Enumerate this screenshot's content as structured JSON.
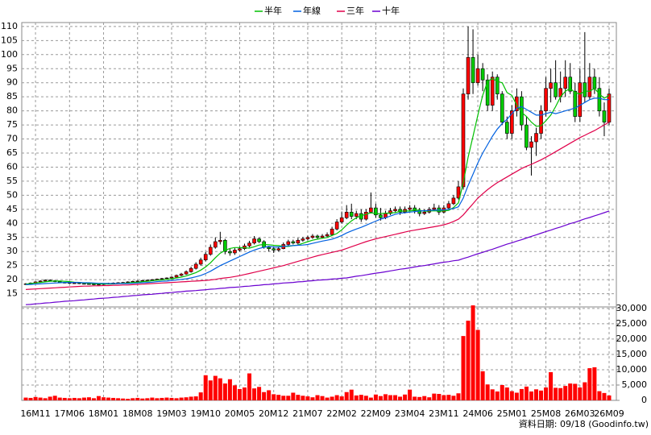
{
  "chart_data": {
    "type": "candlestick",
    "source": "資料日期: 09/18 (Goodinfo.tw)",
    "categories": [
      null,
      null,
      "16M11",
      null,
      null,
      null,
      null,
      null,
      null,
      "17M06",
      null,
      null,
      null,
      null,
      null,
      null,
      "18M01",
      null,
      null,
      null,
      null,
      null,
      null,
      "18M08",
      null,
      null,
      null,
      null,
      null,
      null,
      "19M03",
      null,
      null,
      null,
      null,
      null,
      null,
      "19M10",
      null,
      null,
      null,
      null,
      null,
      null,
      "20M05",
      null,
      null,
      null,
      null,
      null,
      null,
      "20M12",
      null,
      null,
      null,
      null,
      null,
      null,
      "21M07",
      null,
      null,
      null,
      null,
      null,
      null,
      "22M02",
      null,
      null,
      null,
      null,
      null,
      null,
      "22M09",
      null,
      null,
      null,
      null,
      null,
      null,
      "23M04",
      null,
      null,
      null,
      null,
      null,
      null,
      "23M11",
      null,
      null,
      null,
      null,
      null,
      null,
      "24M06",
      null,
      null,
      null,
      null,
      null,
      null,
      "25M01",
      null,
      null,
      null,
      null,
      null,
      null,
      "25M08",
      null,
      null,
      null,
      null,
      null,
      null,
      "26M03",
      null,
      null,
      null,
      null,
      null,
      "26M09"
    ],
    "ylim": [
      10.3,
      111.4
    ],
    "yticks": [
      15,
      20,
      25,
      30,
      35,
      40,
      45,
      50,
      55,
      60,
      65,
      70,
      75,
      80,
      85,
      90,
      95,
      100,
      105,
      110
    ],
    "grid": true,
    "up_color": "#ff0000",
    "down_color": "#00cc00",
    "open": [
      18.3,
      18.5,
      18.8,
      19.2,
      19.5,
      19.8,
      19.6,
      19.3,
      19.0,
      18.9,
      18.7,
      18.8,
      18.6,
      18.5,
      18.4,
      18.2,
      18.3,
      18.5,
      18.7,
      18.8,
      18.9,
      19.0,
      19.2,
      19.4,
      19.5,
      19.7,
      19.8,
      20.0,
      20.2,
      20.4,
      20.6,
      20.9,
      21.5,
      22.0,
      22.8,
      24.0,
      25.5,
      27.0,
      29.0,
      31.5,
      33.5,
      34.0,
      30.0,
      29.5,
      30.5,
      31.0,
      32.0,
      33.0,
      34.5,
      33.5,
      31.5,
      31.0,
      30.5,
      31.0,
      32.5,
      33.5,
      33.0,
      34.0,
      34.5,
      35.0,
      35.5,
      35.0,
      35.5,
      36.0,
      38.0,
      40.5,
      42.0,
      44.0,
      42.5,
      43.5,
      41.5,
      44.0,
      45.5,
      43.0,
      42.0,
      43.5,
      44.5,
      45.0,
      44.0,
      45.0,
      45.5,
      44.5,
      43.5,
      44.0,
      45.0,
      45.5,
      44.0,
      45.5,
      47.0,
      49.0,
      53.0,
      86.0,
      99.0,
      90.0,
      95.0,
      91.0,
      82.0,
      92.0,
      86.0,
      76.0,
      72.0,
      80.0,
      85.0,
      75.0,
      67.0,
      69.0,
      72.0,
      80.0,
      88.0,
      90.0,
      85.0,
      88.0,
      92.0,
      87.0,
      78.0,
      90.0,
      85.0,
      92.0,
      88.0,
      80.0,
      76.0
    ],
    "high": [
      18.8,
      19.0,
      19.4,
      19.8,
      20.1,
      20.1,
      19.9,
      19.5,
      19.2,
      19.1,
      19.0,
      19.0,
      18.8,
      18.7,
      18.6,
      18.5,
      18.7,
      18.9,
      19.0,
      19.1,
      19.2,
      19.4,
      19.6,
      19.7,
      19.9,
      20.0,
      20.2,
      20.4,
      20.6,
      20.8,
      21.1,
      21.8,
      22.4,
      23.3,
      24.6,
      26.2,
      27.8,
      29.8,
      32.5,
      35.0,
      37.0,
      34.5,
      31.0,
      31.2,
      31.8,
      32.8,
      33.8,
      35.5,
      35.0,
      34.0,
      32.0,
      31.5,
      31.8,
      33.2,
      34.2,
      34.2,
      34.8,
      35.2,
      35.6,
      36.2,
      36.0,
      36.2,
      36.8,
      38.8,
      41.5,
      44.0,
      46.5,
      47.0,
      44.5,
      45.0,
      45.0,
      51.0,
      47.0,
      45.5,
      44.5,
      45.5,
      46.0,
      46.0,
      46.0,
      46.5,
      46.5,
      45.5,
      45.0,
      45.8,
      47.0,
      46.5,
      46.5,
      48.0,
      50.0,
      55.0,
      88.0,
      110.0,
      109.0,
      100.0,
      97.0,
      93.0,
      94.0,
      93.0,
      87.0,
      78.0,
      82.0,
      88.0,
      87.0,
      78.0,
      71.0,
      74.0,
      82.0,
      92.0,
      95.0,
      98.0,
      94.0,
      98.0,
      97.0,
      90.0,
      95.0,
      108.0,
      97.0,
      95.0,
      92.0,
      83.0,
      88.0
    ],
    "low": [
      18.1,
      18.3,
      18.6,
      19.0,
      19.3,
      19.4,
      19.1,
      18.8,
      18.7,
      18.5,
      18.5,
      18.4,
      18.3,
      18.2,
      18.0,
      18.0,
      18.1,
      18.3,
      18.5,
      18.6,
      18.7,
      18.8,
      19.0,
      19.2,
      19.3,
      19.5,
      19.6,
      19.8,
      20.0,
      20.2,
      20.4,
      20.7,
      21.2,
      21.7,
      22.5,
      23.6,
      25.0,
      26.5,
      28.5,
      31.0,
      32.5,
      29.0,
      28.5,
      28.8,
      30.0,
      30.5,
      31.5,
      32.5,
      33.0,
      31.0,
      30.0,
      29.5,
      30.0,
      30.8,
      32.0,
      32.5,
      32.5,
      33.5,
      34.0,
      34.5,
      34.5,
      34.8,
      35.2,
      35.8,
      37.5,
      40.0,
      41.5,
      41.5,
      41.5,
      40.5,
      41.0,
      43.5,
      42.0,
      41.0,
      41.5,
      43.0,
      44.0,
      43.0,
      43.5,
      44.5,
      43.5,
      42.5,
      43.0,
      43.5,
      44.5,
      43.0,
      43.5,
      45.0,
      46.5,
      48.5,
      52.0,
      84.0,
      86.0,
      89.0,
      87.0,
      80.0,
      80.0,
      84.0,
      75.0,
      70.0,
      70.0,
      78.0,
      73.0,
      66.0,
      57.0,
      64.0,
      70.0,
      78.0,
      83.0,
      84.0,
      83.0,
      85.0,
      86.0,
      76.0,
      76.0,
      83.0,
      84.0,
      86.0,
      78.0,
      71.0,
      75.0
    ],
    "close": [
      18.5,
      18.8,
      19.2,
      19.5,
      19.8,
      19.6,
      19.3,
      19.0,
      18.9,
      18.7,
      18.8,
      18.6,
      18.5,
      18.4,
      18.2,
      18.3,
      18.5,
      18.7,
      18.8,
      18.9,
      19.0,
      19.2,
      19.4,
      19.5,
      19.7,
      19.8,
      20.0,
      20.2,
      20.4,
      20.6,
      20.9,
      21.5,
      22.0,
      22.8,
      24.0,
      25.5,
      27.0,
      29.0,
      31.5,
      33.5,
      34.0,
      30.0,
      29.5,
      30.5,
      31.0,
      32.0,
      33.0,
      34.5,
      33.5,
      31.5,
      31.0,
      30.5,
      31.0,
      32.5,
      33.5,
      33.0,
      34.0,
      34.5,
      35.0,
      35.5,
      35.0,
      35.5,
      36.0,
      38.0,
      40.5,
      42.0,
      44.0,
      42.5,
      43.5,
      41.5,
      44.0,
      45.5,
      43.0,
      42.0,
      43.5,
      44.5,
      45.0,
      44.0,
      45.0,
      45.5,
      44.5,
      43.5,
      44.0,
      45.0,
      45.5,
      44.0,
      45.5,
      47.0,
      49.0,
      53.0,
      86.0,
      99.0,
      90.0,
      95.0,
      91.0,
      82.0,
      92.0,
      86.0,
      76.0,
      72.0,
      80.0,
      85.0,
      75.0,
      67.0,
      69.0,
      72.0,
      80.0,
      88.0,
      90.0,
      85.0,
      88.0,
      92.0,
      87.0,
      78.0,
      90.0,
      85.0,
      92.0,
      88.0,
      80.0,
      76.0,
      86.0
    ],
    "series": [
      {
        "name": "半年",
        "color": "#00c000",
        "values": [
          18.4,
          18.6,
          18.8,
          19.0,
          19.2,
          19.4,
          19.5,
          19.5,
          19.4,
          19.3,
          19.1,
          19.0,
          18.8,
          18.7,
          18.6,
          18.5,
          18.5,
          18.4,
          18.5,
          18.6,
          18.7,
          18.8,
          19.0,
          19.1,
          19.3,
          19.4,
          19.6,
          19.8,
          19.9,
          20.1,
          20.3,
          20.6,
          20.9,
          21.3,
          21.9,
          22.5,
          23.4,
          24.5,
          26.0,
          27.8,
          29.4,
          30.4,
          31.1,
          31.4,
          31.4,
          31.3,
          31.2,
          31.7,
          32.3,
          32.5,
          32.4,
          32.2,
          32.1,
          31.8,
          31.8,
          32.1,
          32.3,
          32.9,
          33.5,
          34.0,
          34.4,
          34.7,
          35.0,
          35.7,
          36.4,
          37.7,
          39.4,
          40.9,
          42.0,
          42.7,
          43.2,
          43.8,
          43.4,
          43.5,
          43.6,
          43.7,
          43.8,
          44.3,
          44.4,
          44.4,
          44.7,
          44.7,
          44.3,
          44.4,
          44.5,
          44.4,
          44.4,
          44.6,
          45.6,
          47.3,
          54.5,
          63.5,
          71.0,
          78.5,
          85.5,
          90.5,
          91.5,
          90.5,
          90.0,
          86.5,
          85.5,
          82.0,
          79.5,
          78.0,
          76.0,
          74.5,
          74.7,
          76.5,
          78.5,
          81.5,
          85.0,
          87.0,
          88.0,
          86.5,
          86.0,
          87.0,
          87.0,
          88.0,
          86.0,
          84.5,
          85.5
        ]
      },
      {
        "name": "年線",
        "color": "#0060e0",
        "values": [
          18.2,
          18.3,
          18.4,
          18.5,
          18.6,
          18.7,
          18.8,
          18.9,
          19.0,
          19.0,
          19.0,
          19.0,
          18.9,
          18.9,
          18.8,
          18.7,
          18.7,
          18.6,
          18.6,
          18.6,
          18.6,
          18.6,
          18.7,
          18.8,
          18.9,
          19.0,
          19.1,
          19.3,
          19.4,
          19.5,
          19.7,
          19.9,
          20.1,
          20.3,
          20.6,
          21.0,
          21.5,
          22.2,
          23.0,
          24.0,
          25.0,
          25.8,
          26.6,
          27.4,
          28.2,
          29.0,
          29.8,
          30.5,
          31.1,
          31.5,
          31.8,
          31.6,
          31.6,
          31.8,
          32.0,
          32.1,
          32.2,
          32.3,
          32.5,
          32.9,
          33.3,
          33.7,
          34.0,
          34.4,
          35.0,
          35.7,
          36.6,
          37.3,
          38.0,
          38.6,
          39.3,
          40.1,
          40.8,
          41.5,
          42.0,
          42.6,
          43.2,
          43.6,
          43.8,
          44.0,
          44.2,
          44.4,
          44.5,
          44.6,
          44.7,
          44.7,
          44.8,
          45.0,
          45.3,
          45.9,
          49.0,
          53.5,
          57.5,
          61.5,
          65.0,
          68.0,
          71.0,
          73.5,
          75.5,
          77.0,
          79.0,
          81.0,
          81.5,
          80.5,
          79.5,
          78.5,
          78.5,
          79.0,
          79.5,
          79.0,
          79.5,
          80.0,
          80.5,
          81.0,
          82.0,
          83.0,
          84.0,
          84.5,
          84.5,
          84.0,
          84.0
        ]
      },
      {
        "name": "三年",
        "color": "#e0004a",
        "values": [
          16.5,
          16.6,
          16.7,
          16.8,
          16.9,
          17.0,
          17.1,
          17.2,
          17.3,
          17.4,
          17.5,
          17.6,
          17.7,
          17.7,
          17.8,
          17.8,
          17.9,
          17.9,
          18.0,
          18.0,
          18.1,
          18.1,
          18.2,
          18.3,
          18.4,
          18.5,
          18.6,
          18.7,
          18.8,
          18.9,
          19.0,
          19.1,
          19.2,
          19.3,
          19.4,
          19.5,
          19.6,
          19.7,
          19.9,
          20.1,
          20.4,
          20.6,
          20.8,
          21.1,
          21.4,
          21.8,
          22.2,
          22.6,
          23.0,
          23.4,
          23.8,
          24.2,
          24.6,
          25.0,
          25.5,
          26.0,
          26.5,
          27.0,
          27.5,
          28.0,
          28.5,
          28.9,
          29.3,
          29.7,
          30.1,
          30.5,
          31.1,
          31.7,
          32.3,
          32.9,
          33.5,
          34.0,
          34.5,
          34.9,
          35.3,
          35.7,
          36.1,
          36.5,
          36.9,
          37.3,
          37.6,
          37.9,
          38.2,
          38.5,
          38.8,
          39.1,
          39.5,
          40.0,
          40.7,
          41.5,
          43.0,
          45.0,
          47.0,
          49.0,
          50.5,
          52.0,
          53.3,
          54.5,
          55.5,
          56.5,
          57.5,
          58.5,
          59.5,
          60.3,
          61.0,
          61.8,
          62.6,
          63.5,
          64.5,
          65.5,
          66.5,
          67.5,
          68.5,
          69.5,
          70.5,
          71.3,
          72.2,
          73.0,
          74.0,
          75.0,
          76.0
        ]
      },
      {
        "name": "十年",
        "color": "#6a00d0",
        "values": [
          11.1,
          11.2,
          11.4,
          11.5,
          11.7,
          11.8,
          12.0,
          12.1,
          12.3,
          12.4,
          12.5,
          12.7,
          12.8,
          13.0,
          13.1,
          13.3,
          13.4,
          13.5,
          13.7,
          13.8,
          14.0,
          14.1,
          14.3,
          14.4,
          14.6,
          14.7,
          14.8,
          15.0,
          15.1,
          15.3,
          15.4,
          15.6,
          15.7,
          15.9,
          16.0,
          16.1,
          16.3,
          16.4,
          16.6,
          16.7,
          16.9,
          17.0,
          17.2,
          17.3,
          17.4,
          17.6,
          17.7,
          17.9,
          18.0,
          18.2,
          18.3,
          18.5,
          18.6,
          18.8,
          18.9,
          19.0,
          19.2,
          19.3,
          19.5,
          19.6,
          19.8,
          19.9,
          20.0,
          20.2,
          20.3,
          20.5,
          20.6,
          20.9,
          21.2,
          21.4,
          21.7,
          22.0,
          22.3,
          22.5,
          22.8,
          23.1,
          23.4,
          23.7,
          23.9,
          24.2,
          24.5,
          24.8,
          25.0,
          25.3,
          25.6,
          25.9,
          26.2,
          26.4,
          26.7,
          26.9,
          27.5,
          28.0,
          28.6,
          29.2,
          29.7,
          30.3,
          30.8,
          31.4,
          32.0,
          32.6,
          33.1,
          33.7,
          34.2,
          34.8,
          35.4,
          35.9,
          36.5,
          37.1,
          37.6,
          38.2,
          38.7,
          39.3,
          39.9,
          40.4,
          41.0,
          41.6,
          42.1,
          42.7,
          43.2,
          43.8,
          44.4
        ]
      }
    ],
    "volume": {
      "color": "#ff0000",
      "ylim": [
        0,
        30500
      ],
      "yticks": [
        0,
        {
          "value": 5000,
          "label": "5,000"
        },
        {
          "value": 10000,
          "label": "10,000"
        },
        {
          "value": 15000,
          "label": "15,000"
        },
        {
          "value": 20000,
          "label": "20,000"
        },
        {
          "value": 25000,
          "label": "25,000"
        },
        {
          "value": 30000,
          "label": "30,000"
        }
      ],
      "values": [
        900,
        800,
        1100,
        900,
        700,
        1200,
        1500,
        900,
        800,
        700,
        800,
        700,
        900,
        1000,
        700,
        1400,
        1000,
        900,
        800,
        700,
        600,
        500,
        700,
        800,
        600,
        700,
        900,
        700,
        800,
        900,
        800,
        700,
        900,
        1000,
        1200,
        1300,
        2600,
        8200,
        6500,
        8000,
        7200,
        5500,
        6900,
        4900,
        3700,
        4200,
        8800,
        3900,
        4400,
        2700,
        3300,
        2000,
        1800,
        1500,
        1500,
        2500,
        1800,
        1500,
        1300,
        1000,
        1700,
        1400,
        900,
        1200,
        1700,
        1300,
        2700,
        3500,
        1600,
        1800,
        1500,
        900,
        1900,
        1400,
        2000,
        1700,
        1700,
        1200,
        1900,
        3500,
        1200,
        1100,
        1400,
        1000,
        2200,
        2100,
        1700,
        1800,
        1500,
        2300,
        21000,
        26000,
        31000,
        23000,
        9500,
        5200,
        3600,
        2900,
        5000,
        4200,
        3000,
        2500,
        3700,
        4500,
        2900,
        3600,
        3200,
        4200,
        9200,
        4100,
        4000,
        4700,
        5500,
        5400,
        4200,
        5900,
        10500,
        10800,
        3000,
        2400,
        1600
      ]
    }
  }
}
